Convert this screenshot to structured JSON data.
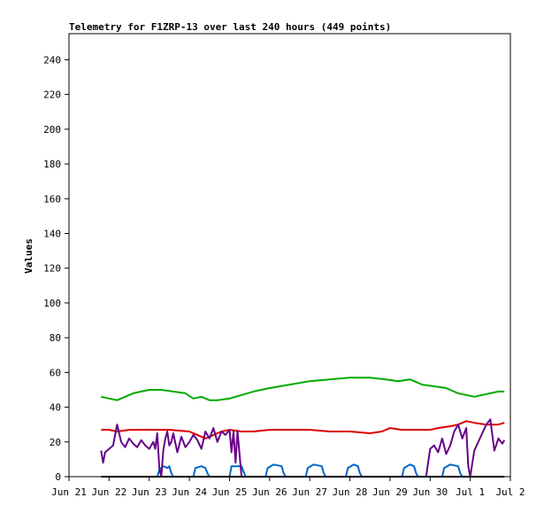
{
  "chart_data": {
    "type": "line",
    "title": "Telemetry for F1ZRP-13 over last 240 hours (449 points)",
    "xlabel": "",
    "ylabel": "Values",
    "ylim": [
      0,
      255
    ],
    "yticks": [
      0,
      20,
      40,
      60,
      80,
      100,
      120,
      140,
      160,
      180,
      200,
      220,
      240
    ],
    "xlim": [
      0,
      11
    ],
    "xticks": [
      {
        "label": "Jun 21",
        "day": 0
      },
      {
        "label": "Jun 22",
        "day": 1
      },
      {
        "label": "Jun 23",
        "day": 2
      },
      {
        "label": "Jun 24",
        "day": 3
      },
      {
        "label": "Jun 25",
        "day": 4
      },
      {
        "label": "Jun 26",
        "day": 5
      },
      {
        "label": "Jun 27",
        "day": 6
      },
      {
        "label": "Jun 28",
        "day": 7
      },
      {
        "label": "Jun 29",
        "day": 8
      },
      {
        "label": "Jun 30",
        "day": 9
      },
      {
        "label": "Jul 1",
        "day": 10
      },
      {
        "label": "Jul 2",
        "day": 11
      }
    ],
    "grid": false,
    "legend": "none",
    "series": [
      {
        "color": "#00aa00",
        "x": [
          0.8,
          1.0,
          1.2,
          1.4,
          1.6,
          1.8,
          2.0,
          2.3,
          2.6,
          2.9,
          3.1,
          3.3,
          3.5,
          3.7,
          4.0,
          4.3,
          4.6,
          5.0,
          5.5,
          6.0,
          6.5,
          7.0,
          7.5,
          7.9,
          8.2,
          8.5,
          8.8,
          9.1,
          9.4,
          9.7,
          9.9,
          10.1,
          10.3,
          10.5,
          10.7,
          10.85
        ],
        "y": [
          46,
          45,
          44,
          46,
          48,
          49,
          50,
          50,
          49,
          48,
          45,
          46,
          44,
          44,
          45,
          47,
          49,
          51,
          53,
          55,
          56,
          57,
          57,
          56,
          55,
          56,
          53,
          52,
          51,
          48,
          47,
          46,
          47,
          48,
          49,
          49
        ]
      },
      {
        "color": "#dd0000",
        "x": [
          0.8,
          1.0,
          1.2,
          1.5,
          2.0,
          2.5,
          3.0,
          3.2,
          3.4,
          3.6,
          3.8,
          4.0,
          4.3,
          4.6,
          5.0,
          6.0,
          6.5,
          7.0,
          7.5,
          7.8,
          8.0,
          8.3,
          8.6,
          9.0,
          9.2,
          9.5,
          9.7,
          9.9,
          10.1,
          10.4,
          10.7,
          10.85
        ],
        "y": [
          27,
          27,
          26,
          27,
          27,
          27,
          26,
          24,
          22,
          24,
          26,
          27,
          26,
          26,
          27,
          27,
          26,
          26,
          25,
          26,
          28,
          27,
          27,
          27,
          28,
          29,
          30,
          32,
          31,
          30,
          30,
          31
        ]
      },
      {
        "color": "#0066cc",
        "x": [
          0.8,
          2.2,
          2.25,
          2.35,
          2.45,
          2.5,
          2.55,
          2.6,
          3.1,
          3.15,
          3.3,
          3.4,
          3.45,
          3.5,
          4.0,
          4.05,
          4.15,
          4.3,
          4.35,
          4.4,
          4.9,
          4.95,
          5.1,
          5.3,
          5.35,
          5.4,
          5.9,
          5.95,
          6.1,
          6.3,
          6.35,
          6.4,
          6.9,
          6.95,
          7.1,
          7.2,
          7.25,
          7.3,
          8.3,
          8.35,
          8.5,
          8.6,
          8.65,
          8.7,
          9.3,
          9.35,
          9.5,
          9.7,
          9.75,
          9.8,
          10.85
        ],
        "y": [
          0,
          0,
          4,
          6,
          5,
          6,
          2,
          0,
          0,
          5,
          6,
          5,
          2,
          0,
          0,
          6,
          6,
          6,
          3,
          0,
          0,
          5,
          7,
          6,
          2,
          0,
          0,
          5,
          7,
          6,
          2,
          0,
          0,
          5,
          7,
          6,
          2,
          0,
          0,
          5,
          7,
          6,
          2,
          0,
          0,
          5,
          7,
          6,
          2,
          0,
          0
        ]
      },
      {
        "color": "#660088",
        "x": [
          0.8,
          0.85,
          0.9,
          1.0,
          1.1,
          1.2,
          1.3,
          1.4,
          1.5,
          1.6,
          1.7,
          1.8,
          1.9,
          2.0,
          2.1,
          2.15,
          2.2,
          2.25,
          2.3,
          2.35,
          2.4,
          2.45,
          2.5,
          2.55,
          2.6,
          2.7,
          2.8,
          2.9,
          3.0,
          3.1,
          3.2,
          3.3,
          3.4,
          3.5,
          3.6,
          3.7,
          3.8,
          3.9,
          4.0,
          4.05,
          4.1,
          4.15,
          4.2,
          4.3,
          8.9,
          9.0,
          9.1,
          9.2,
          9.3,
          9.4,
          9.5,
          9.6,
          9.7,
          9.8,
          9.9,
          9.95,
          10.0,
          10.1,
          10.2,
          10.3,
          10.4,
          10.5,
          10.6,
          10.7,
          10.8,
          10.85
        ],
        "y": [
          15,
          8,
          14,
          16,
          18,
          30,
          20,
          17,
          22,
          19,
          17,
          21,
          18,
          16,
          20,
          16,
          25,
          5,
          0,
          15,
          22,
          26,
          18,
          20,
          25,
          14,
          23,
          17,
          20,
          24,
          21,
          16,
          26,
          22,
          28,
          20,
          26,
          24,
          27,
          14,
          26,
          8,
          26,
          0,
          0,
          16,
          18,
          14,
          22,
          13,
          18,
          26,
          30,
          22,
          28,
          6,
          0,
          15,
          20,
          25,
          30,
          33,
          15,
          22,
          19,
          21
        ]
      },
      {
        "color": "#000000",
        "x": [
          0.8,
          10.85
        ],
        "y": [
          0,
          0
        ]
      }
    ]
  }
}
